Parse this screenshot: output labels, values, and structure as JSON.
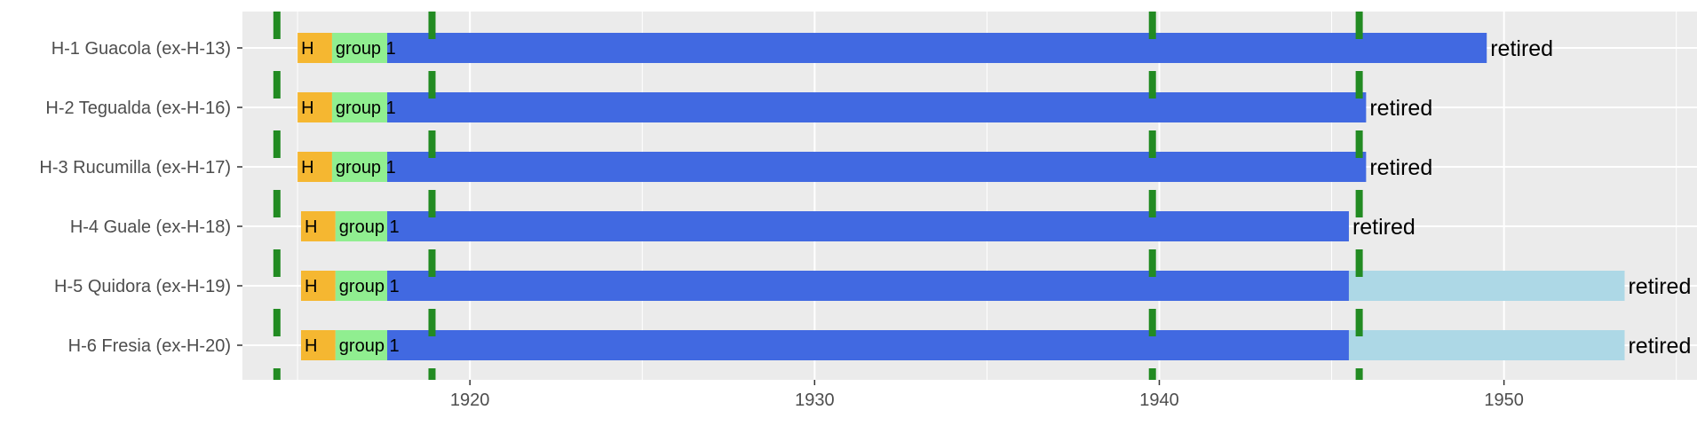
{
  "chart_data": {
    "type": "timeline",
    "title": "",
    "xlabel": "",
    "ylabel": "",
    "xlim": [
      1913.4,
      1955.6
    ],
    "xticks": [
      1920,
      1930,
      1940,
      1950
    ],
    "grid": true,
    "legend": "none",
    "colors": {
      "panel_bg": "#ebebeb",
      "grid": "#ffffff",
      "H": "#f5b731",
      "group 1": "#90ee90",
      "active": "#4169e1",
      "extended": "#add8e6",
      "markers": "#228b22"
    },
    "markers_x": [
      1914.4,
      1918.9,
      1939.8,
      1945.8
    ],
    "ships": [
      {
        "name": "H-1 Guacola (ex-H-13)",
        "segments": [
          {
            "start": 1915.0,
            "end": 1916.0,
            "label": "H",
            "color": "#f5b731"
          },
          {
            "start": 1916.0,
            "end": 1917.6,
            "label": "group 1",
            "color": "#90ee90"
          },
          {
            "start": 1917.6,
            "end": 1949.5,
            "label": "",
            "color": "#4169e1"
          }
        ],
        "end_label": "retired"
      },
      {
        "name": "H-2 Tegualda (ex-H-16)",
        "segments": [
          {
            "start": 1915.0,
            "end": 1916.0,
            "label": "H",
            "color": "#f5b731"
          },
          {
            "start": 1916.0,
            "end": 1917.6,
            "label": "group 1",
            "color": "#90ee90"
          },
          {
            "start": 1917.6,
            "end": 1946.0,
            "label": "",
            "color": "#4169e1"
          }
        ],
        "end_label": "retired"
      },
      {
        "name": "H-3 Rucumilla (ex-H-17)",
        "segments": [
          {
            "start": 1915.0,
            "end": 1916.0,
            "label": "H",
            "color": "#f5b731"
          },
          {
            "start": 1916.0,
            "end": 1917.6,
            "label": "group 1",
            "color": "#90ee90"
          },
          {
            "start": 1917.6,
            "end": 1946.0,
            "label": "",
            "color": "#4169e1"
          }
        ],
        "end_label": "retired"
      },
      {
        "name": "H-4 Guale (ex-H-18)",
        "segments": [
          {
            "start": 1915.1,
            "end": 1916.1,
            "label": "H",
            "color": "#f5b731"
          },
          {
            "start": 1916.1,
            "end": 1917.6,
            "label": "group 1",
            "color": "#90ee90"
          },
          {
            "start": 1917.6,
            "end": 1945.5,
            "label": "",
            "color": "#4169e1"
          }
        ],
        "end_label": "retired"
      },
      {
        "name": "H-5 Quidora (ex-H-19)",
        "segments": [
          {
            "start": 1915.1,
            "end": 1916.1,
            "label": "H",
            "color": "#f5b731"
          },
          {
            "start": 1916.1,
            "end": 1917.6,
            "label": "group 1",
            "color": "#90ee90"
          },
          {
            "start": 1917.6,
            "end": 1945.5,
            "label": "",
            "color": "#4169e1"
          },
          {
            "start": 1945.5,
            "end": 1953.5,
            "label": "",
            "color": "#add8e6"
          }
        ],
        "end_label": "retired"
      },
      {
        "name": "H-6 Fresia (ex-H-20)",
        "segments": [
          {
            "start": 1915.1,
            "end": 1916.1,
            "label": "H",
            "color": "#f5b731"
          },
          {
            "start": 1916.1,
            "end": 1917.6,
            "label": "group 1",
            "color": "#90ee90"
          },
          {
            "start": 1917.6,
            "end": 1945.5,
            "label": "",
            "color": "#4169e1"
          },
          {
            "start": 1945.5,
            "end": 1953.5,
            "label": "",
            "color": "#add8e6"
          }
        ],
        "end_label": "retired"
      }
    ]
  }
}
